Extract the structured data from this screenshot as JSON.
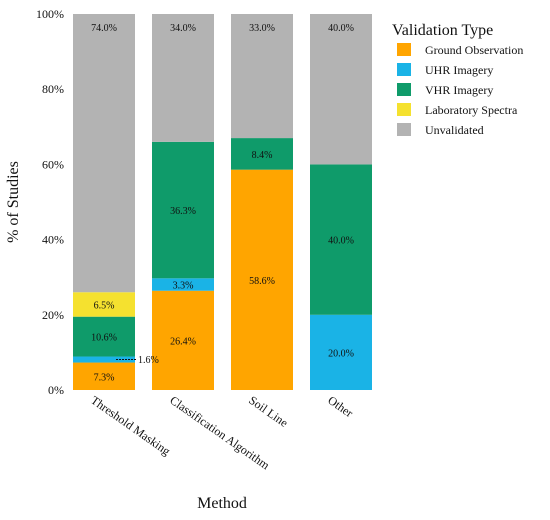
{
  "chart_data": {
    "type": "bar",
    "stacked": true,
    "xlabel": "Method",
    "ylabel": "% of Studies",
    "ylim": [
      0,
      100
    ],
    "yticks": [
      "0%",
      "20%",
      "40%",
      "60%",
      "80%",
      "100%"
    ],
    "grid": false,
    "legend": {
      "title": "Validation Type",
      "position": "right"
    },
    "categories": [
      "Threshold Masking",
      "Classification Algorithm",
      "Soil Line",
      "Other"
    ],
    "series": [
      {
        "name": "Ground Observation",
        "color": "#FFA500",
        "values": [
          7.3,
          26.4,
          58.6,
          0
        ],
        "labels": [
          "7.3%",
          "26.4%",
          "58.6%",
          ""
        ]
      },
      {
        "name": "UHR Imagery",
        "color": "#1AB3E6",
        "values": [
          1.6,
          3.3,
          0,
          20.0
        ],
        "labels": [
          "1.6%",
          "3.3%",
          "",
          "20.0%"
        ]
      },
      {
        "name": "VHR Imagery",
        "color": "#0F9B6A",
        "values": [
          10.6,
          36.3,
          8.4,
          40.0
        ],
        "labels": [
          "10.6%",
          "36.3%",
          "8.4%",
          "40.0%"
        ]
      },
      {
        "name": "Laboratory Spectra",
        "color": "#F5E12F",
        "values": [
          6.5,
          0,
          0,
          0
        ],
        "labels": [
          "6.5%",
          "",
          "",
          ""
        ]
      },
      {
        "name": "Unvalidated",
        "color": "#B3B3B3",
        "values": [
          74.0,
          34.0,
          33.0,
          40.0
        ],
        "labels": [
          "74.0%",
          "34.0%",
          "33.0%",
          "40.0%"
        ]
      }
    ]
  }
}
